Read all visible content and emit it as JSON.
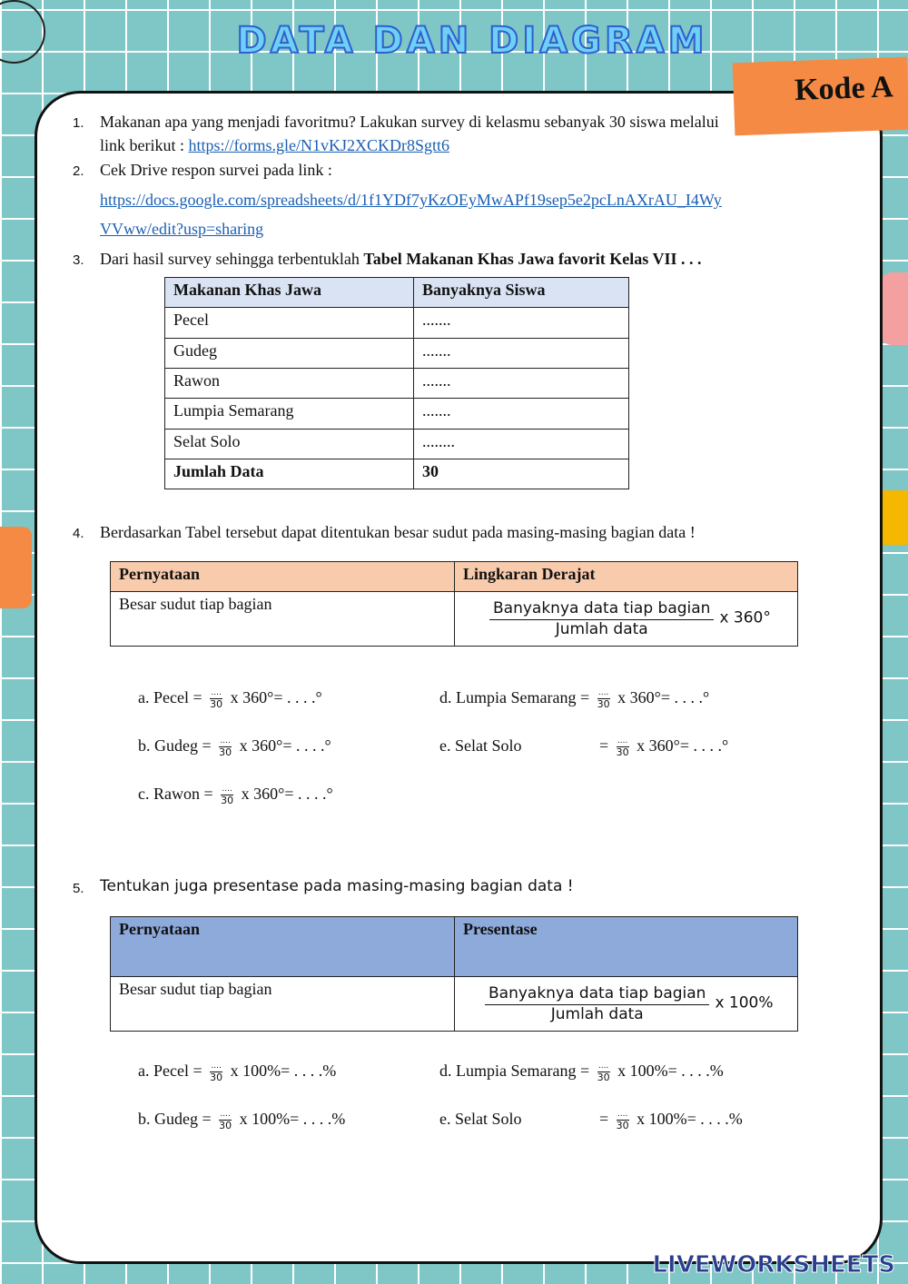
{
  "header": {
    "title": "DATA DAN DIAGRAM",
    "code": "Kode A"
  },
  "q1": {
    "num": "1.",
    "text": "Makanan apa yang menjadi favoritmu? Lakukan survey di kelasmu sebanyak 30 siswa melalui",
    "text2": "link berikut : ",
    "link": "https://forms.gle/N1vKJ2XCKDr8Sgtt6"
  },
  "q2": {
    "num": "2.",
    "text": "Cek Drive respon survei pada link :",
    "link1": "https://docs.google.com/spreadsheets/d/1f1YDf7yKzOEyMwAPf19sep5e2pcLnAXrAU_I4Wy",
    "link2": "VVww/edit?usp=sharing"
  },
  "q3": {
    "num": "3.",
    "text": "Dari hasil survey sehingga terbentuklah ",
    "bold": "Tabel Makanan Khas Jawa favorit Kelas VII  . . .",
    "table": {
      "headers": [
        "Makanan Khas Jawa",
        "Banyaknya Siswa"
      ],
      "rows": [
        [
          "Pecel",
          "......."
        ],
        [
          "Gudeg",
          "......."
        ],
        [
          "Rawon",
          "......."
        ],
        [
          "Lumpia Semarang",
          "......."
        ],
        [
          "Selat Solo",
          "........"
        ]
      ],
      "total": [
        "Jumlah Data",
        "30"
      ]
    }
  },
  "q4": {
    "num": "4.",
    "text": "Berdasarkan Tabel tersebut dapat ditentukan besar sudut pada masing-masing bagian data !",
    "table": {
      "headers": [
        "Pernyataan",
        "Lingkaran Derajat"
      ],
      "row_label": "Besar sudut tiap bagian",
      "numerator": "Banyaknya data tiap bagian",
      "denominator": "Jumlah data",
      "factor": "x 360°"
    },
    "items": [
      {
        "label": "a.   Pecel   = ",
        "n": "....",
        "d": "30",
        "rest": " x 360°=  . . . .°"
      },
      {
        "label": "b.   Gudeg = ",
        "n": "....",
        "d": "30",
        "rest": " x 360°=  . . . .°"
      },
      {
        "label": "c.   Rawon = ",
        "n": "....",
        "d": "30",
        "rest": " x 360°=  . . . .°"
      },
      {
        "label": "d.  Lumpia Semarang = ",
        "n": "....",
        "d": "30",
        "rest": " x 360°=  . . . .°"
      },
      {
        "label": "e.  Selat Solo",
        "eq": "= ",
        "n": "....",
        "d": "30",
        "rest": " x 360°=  . . . .°"
      }
    ]
  },
  "q5": {
    "num": "5.",
    "text": "Tentukan juga presentase pada masing-masing bagian data !",
    "table": {
      "headers": [
        "Pernyataan",
        "Presentase"
      ],
      "row_label": "Besar sudut tiap bagian",
      "numerator": "Banyaknya data tiap bagian",
      "denominator": "Jumlah data",
      "factor": "x 100%"
    },
    "items": [
      {
        "label": "a.   Pecel   = ",
        "n": "....",
        "d": "30",
        "rest": " x 100%=  . . . .%"
      },
      {
        "label": "b.   Gudeg = ",
        "n": "....",
        "d": "30",
        "rest": " x 100%=  . . . .%"
      },
      {
        "label": "d.  Lumpia Semarang = ",
        "n": "....",
        "d": "30",
        "rest": " x 100%=  . . . .%"
      },
      {
        "label": "e.  Selat Solo",
        "eq": "= ",
        "n": "....",
        "d": "30",
        "rest": " x 100%=  . . . .%"
      }
    ]
  },
  "footer": {
    "brand": "LIVEWORKSHEETS"
  },
  "colors": {
    "table1_header": "#dae3f3",
    "table2_header": "#f8cbad",
    "table3_header": "#8eaadb",
    "accent": "#f58a45"
  }
}
